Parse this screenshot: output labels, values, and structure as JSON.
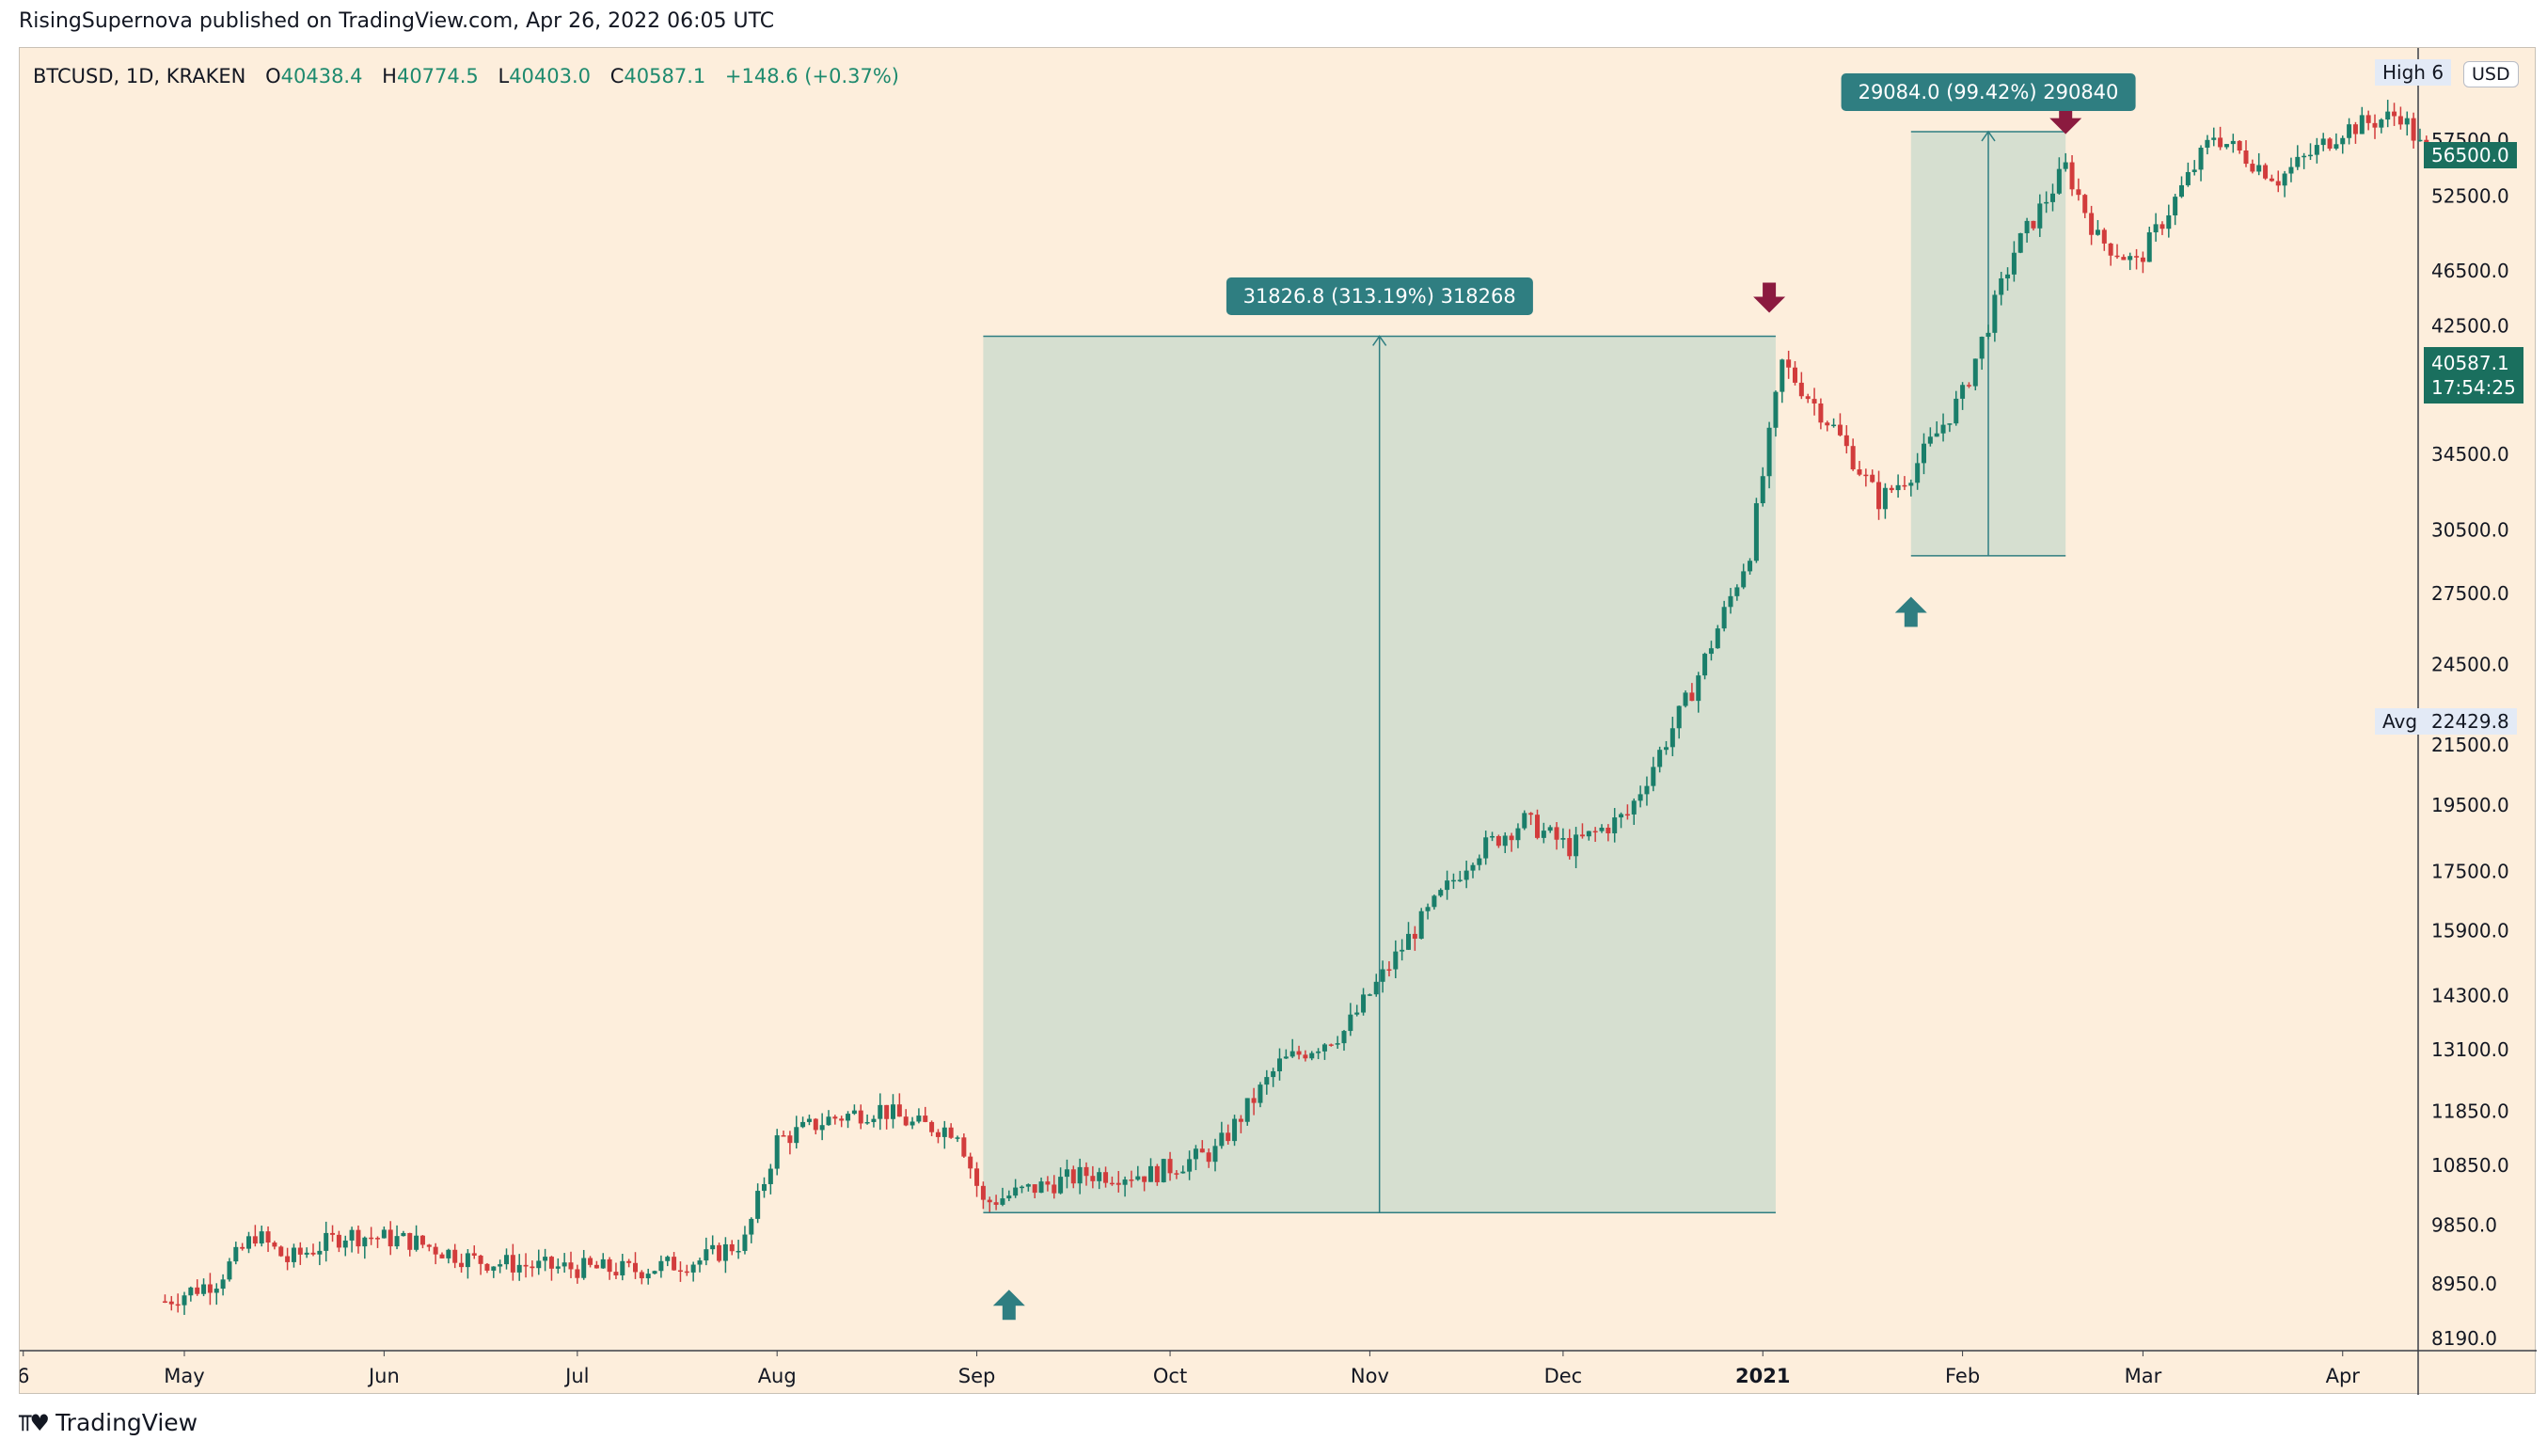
{
  "attribution": "RisingSupernova published on TradingView.com, Apr 26, 2022 06:05 UTC",
  "legend": {
    "symbol": "BTCUSD, 1D, KRAKEN",
    "open_label": "O",
    "open": "40438.4",
    "high_label": "H",
    "high": "40774.5",
    "low_label": "L",
    "low": "40403.0",
    "close_label": "C",
    "close": "40587.1",
    "change": "+148.6 (+0.37%)"
  },
  "currency": "USD",
  "high_tag": "High",
  "high_tag_value": "6",
  "avg_tag": "Avg",
  "avg_value": "22429.8",
  "target_price_tag": "56500.0",
  "last_price": "40587.1",
  "countdown": "17:54:25",
  "footer_brand": "TradingView",
  "colors": {
    "background": "#fdeedc",
    "up": "#1a7e6a",
    "down": "#d23c3c",
    "measure": "#2f7e81",
    "box_fill": "#cfdcce",
    "sell_arrow": "#8b1a3f"
  },
  "chart_data": {
    "type": "candlestick",
    "title": "BTCUSD, 1D, KRAKEN",
    "y_scale": "log",
    "ylim": [
      8190,
      64000
    ],
    "y_ticks": [
      "8190.0",
      "8950.0",
      "9850.0",
      "10850.0",
      "11850.0",
      "13100.0",
      "14300.0",
      "15900.0",
      "17500.0",
      "19500.0",
      "21500.0",
      "24500.0",
      "27500.0",
      "30500.0",
      "34500.0",
      "42500.0",
      "46500.0",
      "52500.0",
      "56500.0",
      "57500.0"
    ],
    "x_labels": [
      "6",
      "May",
      "Jun",
      "Jul",
      "Aug",
      "Sep",
      "Oct",
      "Nov",
      "Dec",
      "2021",
      "Feb",
      "Mar",
      "Apr"
    ],
    "x_label_days": [
      -25,
      0,
      31,
      61,
      92,
      123,
      153,
      184,
      214,
      245,
      276,
      304,
      335
    ],
    "trend_anchors": [
      {
        "day": -3,
        "price": 8700
      },
      {
        "day": 5,
        "price": 9000
      },
      {
        "day": 11,
        "price": 9700
      },
      {
        "day": 16,
        "price": 9300
      },
      {
        "day": 25,
        "price": 9700
      },
      {
        "day": 35,
        "price": 9600
      },
      {
        "day": 45,
        "price": 9300
      },
      {
        "day": 55,
        "price": 9200
      },
      {
        "day": 70,
        "price": 9150
      },
      {
        "day": 80,
        "price": 9300
      },
      {
        "day": 87,
        "price": 9600
      },
      {
        "day": 92,
        "price": 11300
      },
      {
        "day": 100,
        "price": 11700
      },
      {
        "day": 108,
        "price": 11900
      },
      {
        "day": 113,
        "price": 11600
      },
      {
        "day": 120,
        "price": 11500
      },
      {
        "day": 124,
        "price": 10200
      },
      {
        "day": 130,
        "price": 10400
      },
      {
        "day": 140,
        "price": 10700
      },
      {
        "day": 150,
        "price": 10700
      },
      {
        "day": 160,
        "price": 11100
      },
      {
        "day": 170,
        "price": 12800
      },
      {
        "day": 180,
        "price": 13500
      },
      {
        "day": 190,
        "price": 15700
      },
      {
        "day": 200,
        "price": 18000
      },
      {
        "day": 208,
        "price": 19000
      },
      {
        "day": 215,
        "price": 18200
      },
      {
        "day": 224,
        "price": 19200
      },
      {
        "day": 234,
        "price": 23500
      },
      {
        "day": 243,
        "price": 29500
      },
      {
        "day": 248,
        "price": 40000
      },
      {
        "day": 256,
        "price": 36000
      },
      {
        "day": 263,
        "price": 32000
      },
      {
        "day": 268,
        "price": 33500
      },
      {
        "day": 276,
        "price": 38000
      },
      {
        "day": 284,
        "price": 48000
      },
      {
        "day": 292,
        "price": 55000
      },
      {
        "day": 297,
        "price": 49000
      },
      {
        "day": 303,
        "price": 47000
      },
      {
        "day": 315,
        "price": 58000
      },
      {
        "day": 325,
        "price": 54000
      },
      {
        "day": 335,
        "price": 58500
      },
      {
        "day": 344,
        "price": 60000
      },
      {
        "day": 348,
        "price": 56000
      }
    ],
    "measurements": [
      {
        "label": "31826.8 (313.19%) 318268",
        "start_day": 124,
        "end_day": 247,
        "low": 10050,
        "high": 41800
      },
      {
        "label": "29084.0 (99.42%) 290840",
        "start_day": 268,
        "end_day": 292,
        "low": 29250,
        "high": 58300
      }
    ],
    "buy_arrows": [
      {
        "day": 128,
        "price": 8650
      },
      {
        "day": 268,
        "price": 26700
      }
    ],
    "sell_arrows": [
      {
        "day": 246,
        "price": 44500
      },
      {
        "day": 292,
        "price": 59500
      }
    ]
  }
}
